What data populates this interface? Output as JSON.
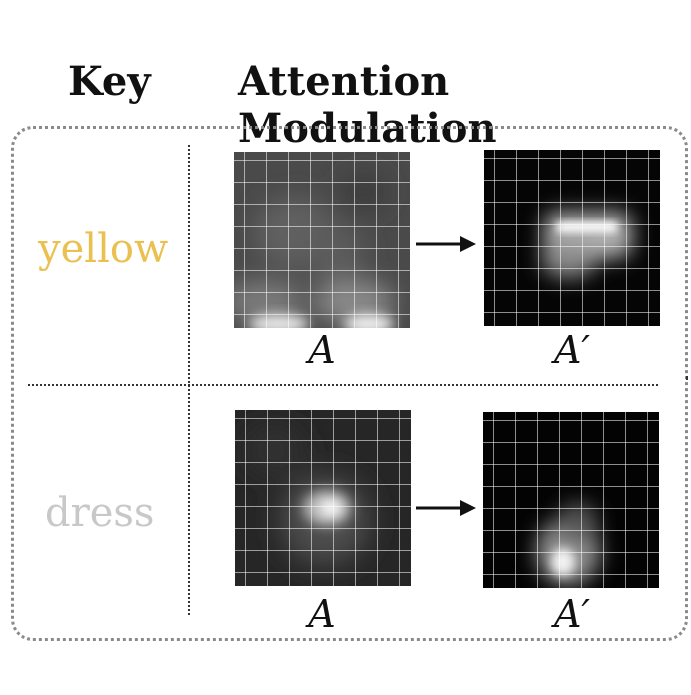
{
  "headers": {
    "key": "Key",
    "modulation": "Attention Modulation"
  },
  "rows": [
    {
      "keyword": "yellow",
      "keyword_color": "#EAC050",
      "before_label": "A",
      "after_label": "A′"
    },
    {
      "keyword": "dress",
      "keyword_color": "#C8C8C8",
      "before_label": "A",
      "after_label": "A′"
    }
  ]
}
